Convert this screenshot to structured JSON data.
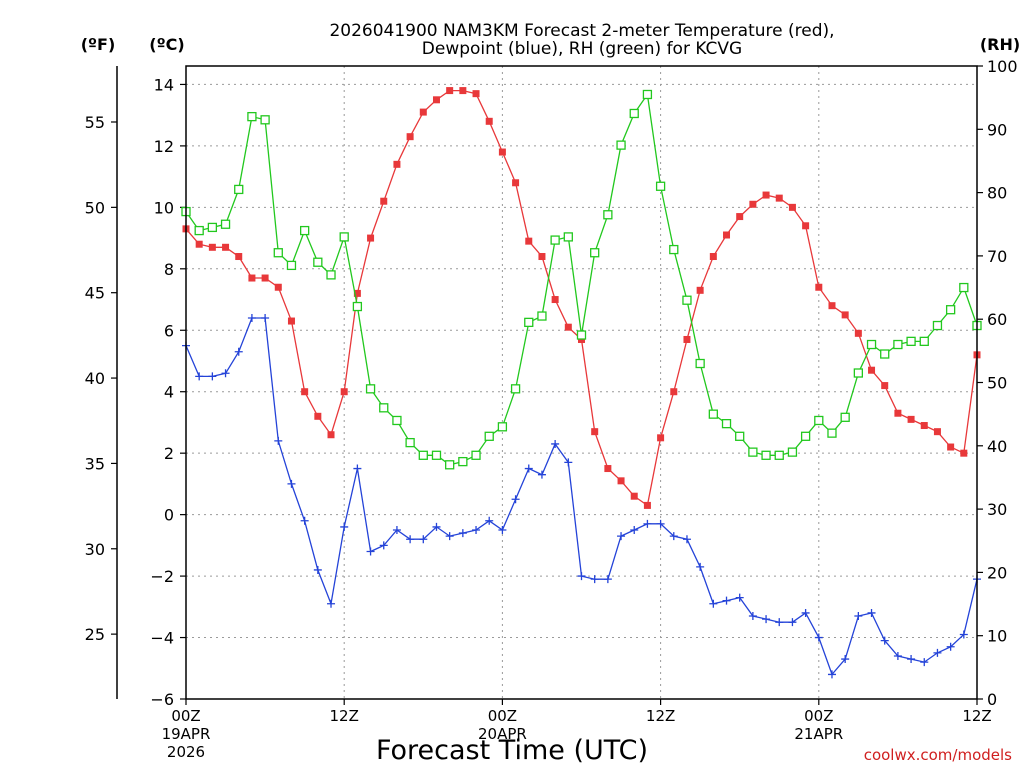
{
  "chart_data": {
    "type": "line",
    "title_line1": "2026041900 NAM3KM Forecast 2-meter Temperature (red),",
    "title_line2": "Dewpoint (blue), RH (green) for KCVG",
    "xlabel": "Forecast Time (UTC)",
    "credit": "coolwx.com/models",
    "units": {
      "fahrenheit": "(ºF)",
      "celsius": "(ºC)",
      "rh": "(RH)"
    },
    "x_hours_range": [
      0,
      60
    ],
    "x_ticks": [
      {
        "hour": 0,
        "label": "00Z",
        "date1": "19APR",
        "date2": "2026"
      },
      {
        "hour": 12,
        "label": "12Z",
        "date1": "",
        "date2": ""
      },
      {
        "hour": 24,
        "label": "00Z",
        "date1": "20APR",
        "date2": ""
      },
      {
        "hour": 36,
        "label": "12Z",
        "date1": "",
        "date2": ""
      },
      {
        "hour": 48,
        "label": "00Z",
        "date1": "21APR",
        "date2": ""
      },
      {
        "hour": 60,
        "label": "12Z",
        "date1": "",
        "date2": ""
      }
    ],
    "ylim_c": [
      -6,
      14.6
    ],
    "yticks_c": [
      "14",
      "12",
      "10",
      "8",
      "6",
      "4",
      "2",
      "0",
      "−2",
      "−4",
      "−6"
    ],
    "yticks_f": [
      "55",
      "50",
      "45",
      "40",
      "35",
      "30",
      "25"
    ],
    "ylim_rh": [
      0,
      100
    ],
    "yticks_rh": [
      "100",
      "90",
      "80",
      "70",
      "60",
      "50",
      "40",
      "30",
      "20",
      "10",
      "0"
    ],
    "colors": {
      "temperature": "#e8383a",
      "dewpoint": "#2443d8",
      "rh": "#22c81e"
    },
    "series": [
      {
        "name": "Temperature (°C)",
        "values": [
          9.3,
          8.8,
          8.7,
          8.7,
          8.4,
          7.7,
          7.7,
          7.4,
          6.3,
          4.0,
          3.2,
          2.6,
          4.0,
          7.2,
          9.0,
          10.2,
          11.4,
          12.3,
          13.1,
          13.5,
          13.8,
          13.8,
          13.7,
          12.8,
          11.8,
          10.8,
          8.9,
          8.4,
          7.0,
          6.1,
          5.7,
          2.7,
          1.5,
          1.1,
          0.6,
          0.3,
          2.5,
          4.0,
          5.7,
          7.3,
          8.4,
          9.1,
          9.7,
          10.1,
          10.4,
          10.3,
          10.0,
          9.4,
          7.4,
          6.8,
          6.5,
          5.9,
          4.7,
          4.2,
          3.3,
          3.1,
          2.9,
          2.7,
          2.2,
          2.0,
          5.2
        ]
      },
      {
        "name": "Dewpoint (°C)",
        "values": [
          5.5,
          4.5,
          4.5,
          4.6,
          5.3,
          6.4,
          6.4,
          2.4,
          1.0,
          -0.2,
          -1.8,
          -2.9,
          -0.4,
          1.5,
          -1.2,
          -1.0,
          -0.5,
          -0.8,
          -0.8,
          -0.4,
          -0.7,
          -0.6,
          -0.5,
          -0.2,
          -0.5,
          0.5,
          1.5,
          1.3,
          2.3,
          1.7,
          -2.0,
          -2.1,
          -2.1,
          -0.7,
          -0.5,
          -0.3,
          -0.3,
          -0.7,
          -0.8,
          -1.7,
          -2.9,
          -2.8,
          -2.7,
          -3.3,
          -3.4,
          -3.5,
          -3.5,
          -3.2,
          -4.0,
          -5.2,
          -4.7,
          -3.3,
          -3.2,
          -4.1,
          -4.6,
          -4.7,
          -4.8,
          -4.5,
          -4.3,
          -3.9,
          -2.1
        ]
      },
      {
        "name": "Relative Humidity (%)",
        "values": [
          77,
          74,
          74.5,
          75,
          80.5,
          92,
          91.5,
          70.5,
          68.5,
          74,
          69,
          67,
          73,
          62,
          49,
          46,
          44,
          40.5,
          38.5,
          38.5,
          37,
          37.5,
          38.5,
          41.5,
          43,
          49,
          59.5,
          60.5,
          72.5,
          73,
          57.5,
          70.5,
          76.5,
          87.5,
          92.5,
          95.5,
          81,
          71,
          63,
          53,
          45,
          43.5,
          41.5,
          39,
          38.5,
          38.5,
          39,
          41.5,
          44,
          42,
          44.5,
          51.5,
          56,
          54.5,
          56,
          56.5,
          56.5,
          59,
          61.5,
          65,
          59
        ]
      }
    ]
  }
}
